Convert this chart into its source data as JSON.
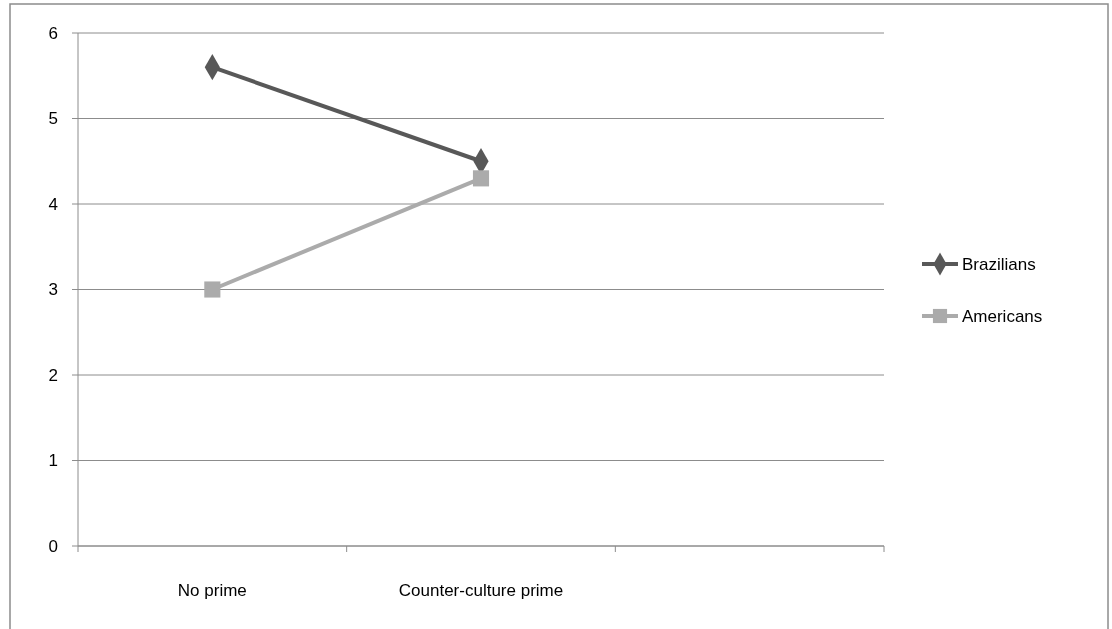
{
  "chart_data": {
    "type": "line",
    "categories": [
      "No prime",
      "Counter-culture prime",
      null
    ],
    "series": [
      {
        "name": "Brazilians",
        "color": "#585858",
        "values": [
          5.6,
          4.5,
          null
        ],
        "marker": "diamond"
      },
      {
        "name": "Americans",
        "color": "#ababab",
        "values": [
          3.0,
          4.3,
          null
        ],
        "marker": "square"
      }
    ],
    "ylim": [
      0,
      6
    ],
    "yticks": [
      0,
      1,
      2,
      3,
      4,
      5,
      6
    ],
    "grid": "y",
    "legend": "right",
    "line_style": "solid"
  }
}
